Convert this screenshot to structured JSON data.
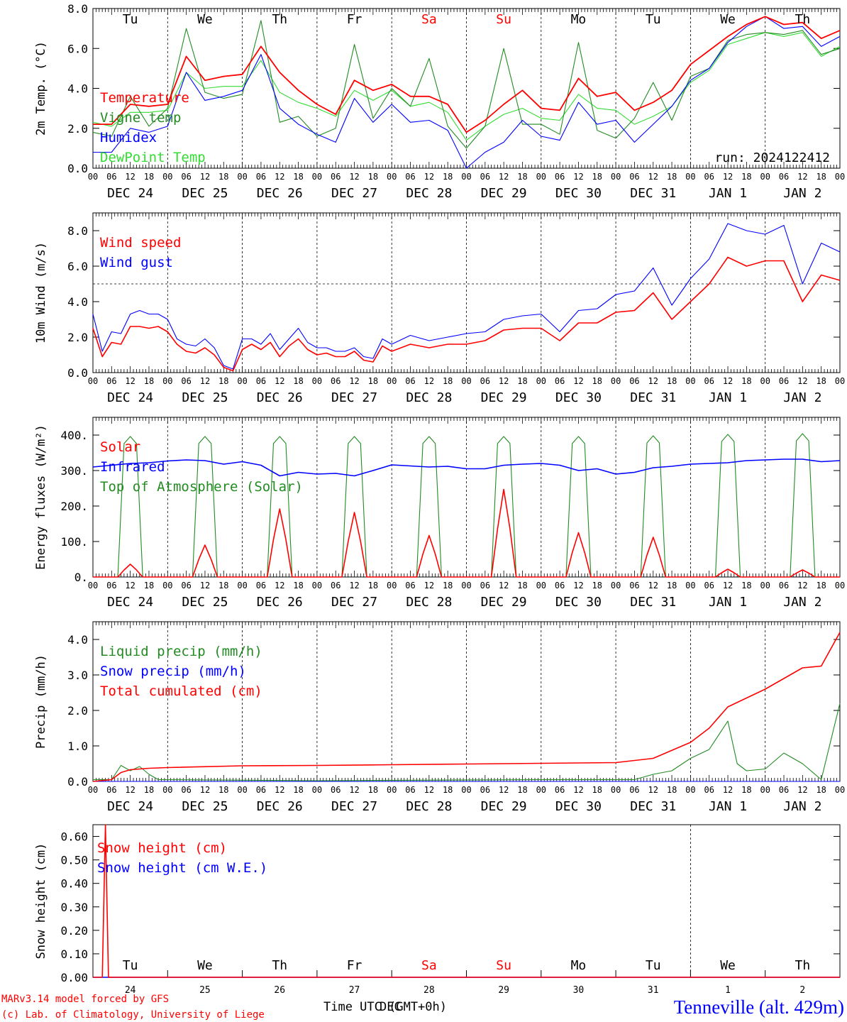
{
  "station": {
    "name": "Tenneville (alt. 429m)",
    "credit_line1": "MARv3.14 model forced by GFS",
    "credit_line2": "(c) Lab. of Climatology, University of Liege",
    "time_label": "Time UTC (GMT+0h)",
    "time_label_overlay": "DEC",
    "run": "run: 2024122412"
  },
  "colors": {
    "red": "#ff0000",
    "blue": "#0000ff",
    "dark_green": "#228b22",
    "light_green": "#33dd33",
    "weekend": "#ff0000",
    "axis": "#000000"
  },
  "time_axis": {
    "day_names": [
      "Tu",
      "We",
      "Th",
      "Fr",
      "Sa",
      "Su",
      "Mo",
      "Tu",
      "We",
      "Th"
    ],
    "weekend_flags": [
      false,
      false,
      false,
      false,
      true,
      true,
      false,
      false,
      false,
      false
    ],
    "date_labels": [
      "DEC 24",
      "DEC 25",
      "DEC 26",
      "DEC 27",
      "DEC 28",
      "DEC 29",
      "DEC 30",
      "DEC 31",
      "JAN  1",
      "JAN  2"
    ],
    "hour_labels": [
      "00",
      "06",
      "12",
      "18"
    ],
    "last_hour_label": "00",
    "snow_day_numbers": [
      "24",
      "25",
      "26",
      "27",
      "28",
      "29",
      "30",
      "31",
      "1",
      "2"
    ]
  },
  "chart_data": [
    {
      "type": "line",
      "ylabel": "2m Temp. (°C)",
      "ylim": [
        0,
        8
      ],
      "yticks": [
        "0.0",
        "2.0",
        "4.0",
        "6.0",
        "8.0"
      ],
      "x_unit": "hours from 2024-12-24 00 UTC",
      "series": [
        {
          "name": "Temperature",
          "color": "#ff0000",
          "x": [
            0,
            6,
            12,
            18,
            24,
            30,
            36,
            42,
            48,
            54,
            60,
            66,
            72,
            78,
            84,
            90,
            96,
            102,
            108,
            114,
            120,
            126,
            132,
            138,
            144,
            150,
            156,
            162,
            168,
            174,
            180,
            186,
            192,
            198,
            204,
            210,
            216,
            222,
            228,
            234,
            240
          ],
          "y": [
            2.2,
            2.2,
            3.2,
            3.1,
            3.2,
            5.6,
            4.4,
            4.6,
            4.7,
            6.1,
            4.8,
            3.9,
            3.2,
            2.7,
            4.4,
            3.9,
            4.2,
            3.6,
            3.6,
            3.2,
            1.8,
            2.4,
            3.2,
            3.9,
            3.0,
            2.9,
            4.5,
            3.6,
            3.8,
            2.9,
            3.3,
            3.9,
            5.2,
            5.9,
            6.6,
            7.2,
            7.6,
            7.2,
            7.3,
            6.5,
            6.9
          ]
        },
        {
          "name": "Vigne temp",
          "color": "#228b22",
          "x": [
            0,
            6,
            12,
            18,
            24,
            30,
            36,
            42,
            48,
            54,
            60,
            66,
            72,
            78,
            84,
            90,
            96,
            102,
            108,
            114,
            120,
            126,
            132,
            138,
            144,
            150,
            156,
            162,
            168,
            174,
            180,
            186,
            192,
            198,
            204,
            210,
            216,
            222,
            228,
            234,
            240
          ],
          "y": [
            1.8,
            1.6,
            3.6,
            2.1,
            3.0,
            7.0,
            3.8,
            3.5,
            3.7,
            7.4,
            2.3,
            2.6,
            1.6,
            2.0,
            6.2,
            2.5,
            4.0,
            3.1,
            5.5,
            2.1,
            1.0,
            2.1,
            6.0,
            2.2,
            2.2,
            1.7,
            6.3,
            1.9,
            1.5,
            2.5,
            4.3,
            2.4,
            4.6,
            5.0,
            6.4,
            6.7,
            6.8,
            6.7,
            6.9,
            5.7,
            6.0
          ]
        },
        {
          "name": "Humidex",
          "color": "#0000ff",
          "x": [
            0,
            6,
            12,
            18,
            24,
            30,
            36,
            42,
            48,
            54,
            60,
            66,
            72,
            78,
            84,
            90,
            96,
            102,
            108,
            114,
            120,
            126,
            132,
            138,
            144,
            150,
            156,
            162,
            168,
            174,
            180,
            186,
            192,
            198,
            204,
            210,
            216,
            222,
            228,
            234,
            240
          ],
          "y": [
            0.8,
            0.8,
            2.0,
            1.8,
            2.1,
            4.8,
            3.4,
            3.6,
            3.9,
            5.7,
            3.0,
            2.2,
            1.7,
            1.3,
            3.5,
            2.3,
            3.2,
            2.3,
            2.4,
            1.9,
            0.0,
            0.8,
            1.3,
            2.4,
            1.6,
            1.4,
            3.3,
            2.2,
            2.4,
            1.3,
            2.2,
            3.1,
            4.4,
            5.0,
            6.3,
            7.1,
            7.6,
            7.0,
            7.1,
            6.1,
            6.6
          ]
        },
        {
          "name": "DewPoint Temp",
          "color": "#33dd33",
          "x": [
            0,
            6,
            12,
            18,
            24,
            30,
            36,
            42,
            48,
            54,
            60,
            66,
            72,
            78,
            84,
            90,
            96,
            102,
            108,
            114,
            120,
            126,
            132,
            138,
            144,
            150,
            156,
            162,
            168,
            174,
            180,
            186,
            192,
            198,
            204,
            210,
            216,
            222,
            228,
            234,
            240
          ],
          "y": [
            2.3,
            2.1,
            2.8,
            2.8,
            2.9,
            4.8,
            4.0,
            4.1,
            4.1,
            5.4,
            3.8,
            3.3,
            3.0,
            2.6,
            3.9,
            3.4,
            3.9,
            3.1,
            3.3,
            2.8,
            1.4,
            2.1,
            2.7,
            3.0,
            2.5,
            2.4,
            3.7,
            3.0,
            2.9,
            2.2,
            2.6,
            3.1,
            4.3,
            4.9,
            6.2,
            6.5,
            6.8,
            6.6,
            6.8,
            5.6,
            6.1
          ]
        }
      ]
    },
    {
      "type": "line",
      "ylabel": "10m Wind (m/s)",
      "ylim": [
        0,
        9
      ],
      "yticks": [
        "0.0",
        "2.0",
        "4.0",
        "6.0",
        "8.0"
      ],
      "reference_line": 5.0,
      "series": [
        {
          "name": "Wind speed",
          "color": "#ff0000",
          "x": [
            0,
            3,
            6,
            9,
            12,
            15,
            18,
            21,
            24,
            27,
            30,
            33,
            36,
            39,
            42,
            45,
            48,
            51,
            54,
            57,
            60,
            63,
            66,
            69,
            72,
            75,
            78,
            81,
            84,
            87,
            90,
            93,
            96,
            102,
            108,
            114,
            120,
            126,
            132,
            138,
            144,
            150,
            156,
            162,
            168,
            174,
            180,
            186,
            192,
            198,
            204,
            210,
            216,
            222,
            228,
            234,
            240
          ],
          "y": [
            2.5,
            0.9,
            1.7,
            1.6,
            2.6,
            2.6,
            2.5,
            2.6,
            2.3,
            1.6,
            1.2,
            1.1,
            1.4,
            1.0,
            0.3,
            0.1,
            1.3,
            1.6,
            1.3,
            1.7,
            0.9,
            1.5,
            1.9,
            1.3,
            1.0,
            1.1,
            0.9,
            0.9,
            1.2,
            0.7,
            0.6,
            1.5,
            1.2,
            1.6,
            1.4,
            1.6,
            1.6,
            1.8,
            2.4,
            2.5,
            2.5,
            1.8,
            2.8,
            2.8,
            3.4,
            3.5,
            4.5,
            3.0,
            4.0,
            5.0,
            6.5,
            6.0,
            6.3,
            6.3,
            4.0,
            5.5,
            5.2
          ]
        },
        {
          "name": "Wind gust",
          "color": "#0000ff",
          "x": [
            0,
            3,
            6,
            9,
            12,
            15,
            18,
            21,
            24,
            27,
            30,
            33,
            36,
            39,
            42,
            45,
            48,
            51,
            54,
            57,
            60,
            63,
            66,
            69,
            72,
            75,
            78,
            81,
            84,
            87,
            90,
            93,
            96,
            102,
            108,
            114,
            120,
            126,
            132,
            138,
            144,
            150,
            156,
            162,
            168,
            174,
            180,
            186,
            192,
            198,
            204,
            210,
            216,
            222,
            228,
            234,
            240
          ],
          "y": [
            3.3,
            1.2,
            2.3,
            2.2,
            3.3,
            3.5,
            3.3,
            3.3,
            3.0,
            1.9,
            1.6,
            1.5,
            1.9,
            1.4,
            0.4,
            0.2,
            1.9,
            1.9,
            1.6,
            2.2,
            1.3,
            1.9,
            2.5,
            1.7,
            1.4,
            1.4,
            1.2,
            1.2,
            1.4,
            0.9,
            0.8,
            1.9,
            1.6,
            2.1,
            1.8,
            2.0,
            2.2,
            2.3,
            3.0,
            3.2,
            3.3,
            2.3,
            3.5,
            3.6,
            4.4,
            4.6,
            5.9,
            3.8,
            5.3,
            6.4,
            8.4,
            8.0,
            7.8,
            8.3,
            5.0,
            7.3,
            6.8
          ]
        }
      ]
    },
    {
      "type": "line",
      "ylabel": "Energy fluxes (W/m²)",
      "ylim": [
        0,
        450
      ],
      "yticks": [
        "0.",
        "100.",
        "200.",
        "300.",
        "400."
      ],
      "solar_peaks": [
        36,
        90,
        192,
        182,
        117,
        247,
        125,
        112,
        22,
        20
      ],
      "toa_peaks": [
        396,
        396,
        396,
        396,
        396,
        396,
        396,
        398,
        402,
        404
      ],
      "series": [
        {
          "name": "Solar",
          "color": "#ff0000"
        },
        {
          "name": "Infrared",
          "color": "#0000ff",
          "x": [
            0,
            6,
            12,
            18,
            24,
            30,
            36,
            42,
            48,
            54,
            60,
            66,
            72,
            78,
            84,
            90,
            96,
            102,
            108,
            114,
            120,
            126,
            132,
            138,
            144,
            150,
            156,
            162,
            168,
            174,
            180,
            186,
            192,
            198,
            204,
            210,
            216,
            222,
            228,
            234,
            240
          ],
          "y": [
            310,
            315,
            320,
            322,
            327,
            330,
            328,
            318,
            325,
            315,
            285,
            295,
            290,
            292,
            285,
            300,
            316,
            313,
            310,
            312,
            305,
            305,
            315,
            318,
            320,
            315,
            300,
            305,
            290,
            295,
            308,
            312,
            318,
            320,
            322,
            328,
            330,
            332,
            332,
            325,
            328
          ]
        },
        {
          "name": "Top of Atmosphere (Solar)",
          "color": "#228b22"
        }
      ]
    },
    {
      "type": "line",
      "ylabel": "Precip (mm/h)",
      "ylim": [
        0,
        4.5
      ],
      "yticks": [
        "0.0",
        "1.0",
        "2.0",
        "3.0",
        "4.0"
      ],
      "series": [
        {
          "name": "Liquid precip (mm/h)",
          "color": "#228b22",
          "x": [
            0,
            6,
            9,
            12,
            15,
            18,
            21,
            24,
            72,
            144,
            168,
            174,
            180,
            186,
            192,
            198,
            204,
            207,
            210,
            216,
            222,
            228,
            234,
            240
          ],
          "y": [
            0.05,
            0.05,
            0.45,
            0.3,
            0.42,
            0.2,
            0.05,
            0.05,
            0.02,
            0.05,
            0.05,
            0.05,
            0.2,
            0.3,
            0.65,
            0.9,
            1.7,
            0.5,
            0.3,
            0.35,
            0.8,
            0.5,
            0.05,
            2.2
          ]
        },
        {
          "name": "Snow precip (mm/h)",
          "color": "#0000ff",
          "x": [
            0,
            240
          ],
          "y": [
            0.0,
            0.0
          ]
        },
        {
          "name": "Total cumulated (cm)",
          "color": "#ff0000",
          "x": [
            0,
            6,
            9,
            12,
            18,
            24,
            48,
            72,
            96,
            120,
            144,
            168,
            180,
            192,
            198,
            204,
            216,
            228,
            234,
            240
          ],
          "y": [
            0.0,
            0.05,
            0.25,
            0.33,
            0.37,
            0.39,
            0.44,
            0.45,
            0.47,
            0.49,
            0.51,
            0.53,
            0.65,
            1.1,
            1.5,
            2.1,
            2.6,
            3.2,
            3.25,
            4.2
          ]
        }
      ]
    },
    {
      "type": "line",
      "ylabel": "Snow height (cm)",
      "ylim": [
        0,
        0.65
      ],
      "yticks": [
        "0.00",
        "0.10",
        "0.20",
        "0.30",
        "0.40",
        "0.50",
        "0.60"
      ],
      "series": [
        {
          "name": "Snow height (cm)",
          "color": "#ff0000",
          "x": [
            0,
            3.0,
            4.0,
            5.0,
            240
          ],
          "y": [
            0.0,
            0.0,
            0.65,
            0.0,
            0.0
          ]
        },
        {
          "name": "Snow height (cm W.E.)",
          "color": "#0000ff",
          "x": [
            0,
            240
          ],
          "y": [
            0.0,
            0.0
          ]
        }
      ]
    }
  ]
}
